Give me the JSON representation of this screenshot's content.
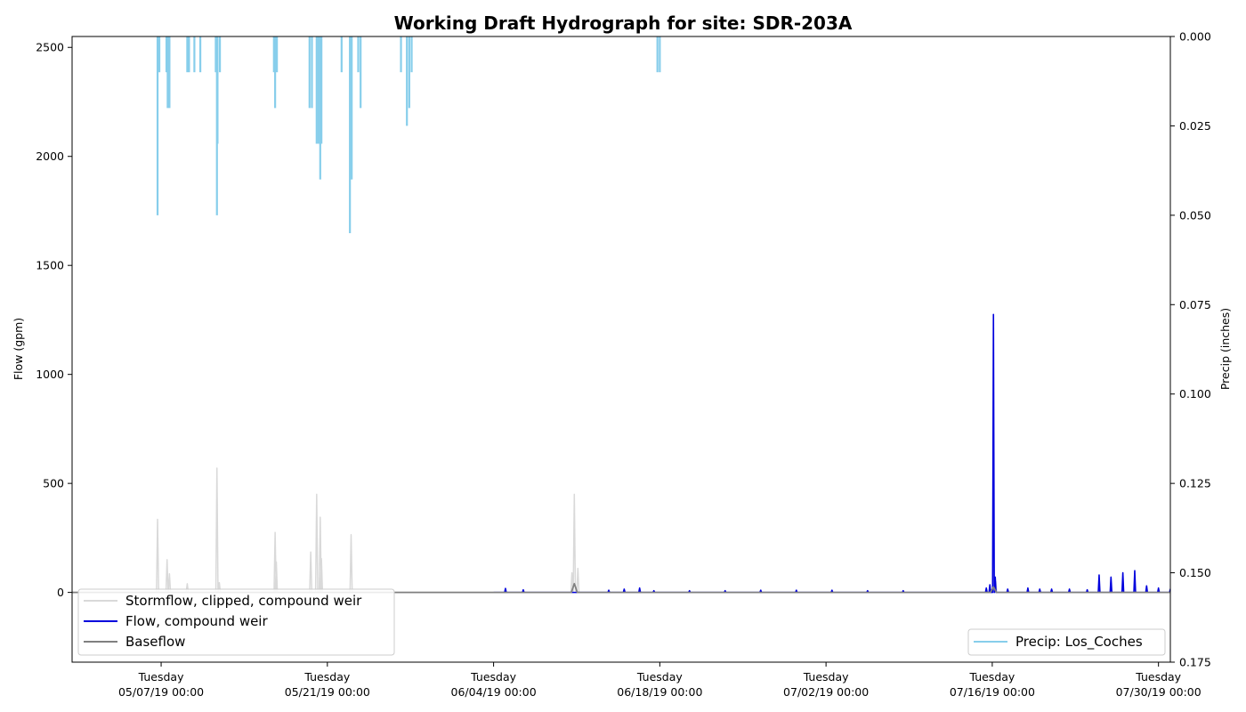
{
  "chart_data": {
    "type": "line",
    "title": "Working Draft Hydrograph for site: SDR-203A",
    "ylabel_left": "Flow (gpm)",
    "ylabel_right": "Precip (inches)",
    "ylim_left": [
      -320,
      2550
    ],
    "ylim_right": [
      0.175,
      0
    ],
    "right_axis_inverted": true,
    "x_range_days": [
      0,
      87
    ],
    "x_ticks": [
      {
        "day": 5.5,
        "weekday": "Tuesday",
        "date": "05/07/19 00:00"
      },
      {
        "day": 19.5,
        "weekday": "Tuesday",
        "date": "05/21/19 00:00"
      },
      {
        "day": 33.5,
        "weekday": "Tuesday",
        "date": "06/04/19 00:00"
      },
      {
        "day": 47.5,
        "weekday": "Tuesday",
        "date": "06/18/19 00:00"
      },
      {
        "day": 61.5,
        "weekday": "Tuesday",
        "date": "07/02/19 00:00"
      },
      {
        "day": 75.5,
        "weekday": "Tuesday",
        "date": "07/16/19 00:00"
      },
      {
        "day": 89.5,
        "weekday": "Tuesday",
        "date": "07/30/19 00:00"
      }
    ],
    "y_ticks_left": [
      0,
      500,
      1000,
      1500,
      2000,
      2500
    ],
    "y_ticks_right": [
      "0.000",
      "0.025",
      "0.050",
      "0.075",
      "0.100",
      "0.125",
      "0.150",
      "0.175"
    ],
    "y_ticks_right_values": [
      0,
      0.025,
      0.05,
      0.075,
      0.1,
      0.125,
      0.15,
      0.175
    ],
    "legend_left": [
      {
        "name": "Stormflow, clipped, compound weir",
        "color": "#d9d9d9"
      },
      {
        "name": "Flow, compound weir",
        "color": "#0000dd"
      },
      {
        "name": "Baseflow",
        "color": "#808080"
      }
    ],
    "legend_right": [
      {
        "name": "Precip: Los_Coches",
        "color": "#87ceeb"
      }
    ],
    "series": [
      {
        "name": "Stormflow, clipped, compound weir",
        "axis": "left",
        "color": "#d9d9d9",
        "spikes": [
          {
            "day": 5.2,
            "value": 335
          },
          {
            "day": 6.0,
            "value": 150
          },
          {
            "day": 6.2,
            "value": 85
          },
          {
            "day": 7.7,
            "value": 40
          },
          {
            "day": 10.2,
            "value": 570
          },
          {
            "day": 10.4,
            "value": 45
          },
          {
            "day": 15.1,
            "value": 275
          },
          {
            "day": 15.2,
            "value": 140
          },
          {
            "day": 18.1,
            "value": 185
          },
          {
            "day": 18.6,
            "value": 450
          },
          {
            "day": 18.9,
            "value": 345
          },
          {
            "day": 19.0,
            "value": 155
          },
          {
            "day": 21.5,
            "value": 265
          },
          {
            "day": 40.1,
            "value": 90
          },
          {
            "day": 40.3,
            "value": 450
          },
          {
            "day": 40.6,
            "value": 110
          },
          {
            "day": 75.8,
            "value": 50
          }
        ]
      },
      {
        "name": "Flow, compound weir",
        "axis": "left",
        "color": "#0000dd",
        "spikes": [
          {
            "day": 34.5,
            "value": 18
          },
          {
            "day": 36.0,
            "value": 12
          },
          {
            "day": 43.2,
            "value": 10
          },
          {
            "day": 44.5,
            "value": 15
          },
          {
            "day": 45.8,
            "value": 20
          },
          {
            "day": 47.0,
            "value": 8
          },
          {
            "day": 50.0,
            "value": 8
          },
          {
            "day": 53.0,
            "value": 8
          },
          {
            "day": 56.0,
            "value": 10
          },
          {
            "day": 59.0,
            "value": 10
          },
          {
            "day": 62.0,
            "value": 10
          },
          {
            "day": 65.0,
            "value": 8
          },
          {
            "day": 68.0,
            "value": 8
          },
          {
            "day": 75.0,
            "value": 20
          },
          {
            "day": 75.3,
            "value": 35
          },
          {
            "day": 75.6,
            "value": 1275
          },
          {
            "day": 75.75,
            "value": 70
          },
          {
            "day": 76.8,
            "value": 15
          },
          {
            "day": 78.5,
            "value": 20
          },
          {
            "day": 79.5,
            "value": 15
          },
          {
            "day": 80.5,
            "value": 15
          },
          {
            "day": 82.0,
            "value": 15
          },
          {
            "day": 83.5,
            "value": 12
          },
          {
            "day": 84.5,
            "value": 80
          },
          {
            "day": 85.5,
            "value": 70
          },
          {
            "day": 86.5,
            "value": 90
          },
          {
            "day": 87.5,
            "value": 100
          },
          {
            "day": 88.5,
            "value": 30
          },
          {
            "day": 89.5,
            "value": 20
          },
          {
            "day": 90.5,
            "value": 15
          }
        ]
      },
      {
        "name": "Baseflow",
        "axis": "left",
        "color": "#808080",
        "spikes": [
          {
            "day": 40.3,
            "value": 40
          },
          {
            "day": 75.6,
            "value": 25
          }
        ]
      },
      {
        "name": "Precip: Los_Coches",
        "axis": "right",
        "color": "#87ceeb",
        "bars": [
          {
            "day": 5.2,
            "value": 0.05
          },
          {
            "day": 5.35,
            "value": 0.01
          },
          {
            "day": 5.95,
            "value": 0.01
          },
          {
            "day": 6.05,
            "value": 0.02
          },
          {
            "day": 6.2,
            "value": 0.02
          },
          {
            "day": 7.7,
            "value": 0.01
          },
          {
            "day": 7.85,
            "value": 0.01
          },
          {
            "day": 8.3,
            "value": 0.01
          },
          {
            "day": 8.8,
            "value": 0.01
          },
          {
            "day": 10.1,
            "value": 0.01
          },
          {
            "day": 10.2,
            "value": 0.05
          },
          {
            "day": 10.25,
            "value": 0.03
          },
          {
            "day": 10.45,
            "value": 0.01
          },
          {
            "day": 15.0,
            "value": 0.01
          },
          {
            "day": 15.1,
            "value": 0.02
          },
          {
            "day": 15.25,
            "value": 0.01
          },
          {
            "day": 18.0,
            "value": 0.02
          },
          {
            "day": 18.2,
            "value": 0.02
          },
          {
            "day": 18.6,
            "value": 0.03
          },
          {
            "day": 18.75,
            "value": 0.03
          },
          {
            "day": 18.9,
            "value": 0.04
          },
          {
            "day": 19.0,
            "value": 0.03
          },
          {
            "day": 20.7,
            "value": 0.01
          },
          {
            "day": 21.4,
            "value": 0.055
          },
          {
            "day": 21.55,
            "value": 0.04
          },
          {
            "day": 22.1,
            "value": 0.01
          },
          {
            "day": 22.3,
            "value": 0.02
          },
          {
            "day": 25.7,
            "value": 0.01
          },
          {
            "day": 26.2,
            "value": 0.025
          },
          {
            "day": 26.4,
            "value": 0.02
          },
          {
            "day": 26.6,
            "value": 0.01
          },
          {
            "day": 47.3,
            "value": 0.01
          },
          {
            "day": 47.5,
            "value": 0.01
          }
        ]
      }
    ]
  }
}
